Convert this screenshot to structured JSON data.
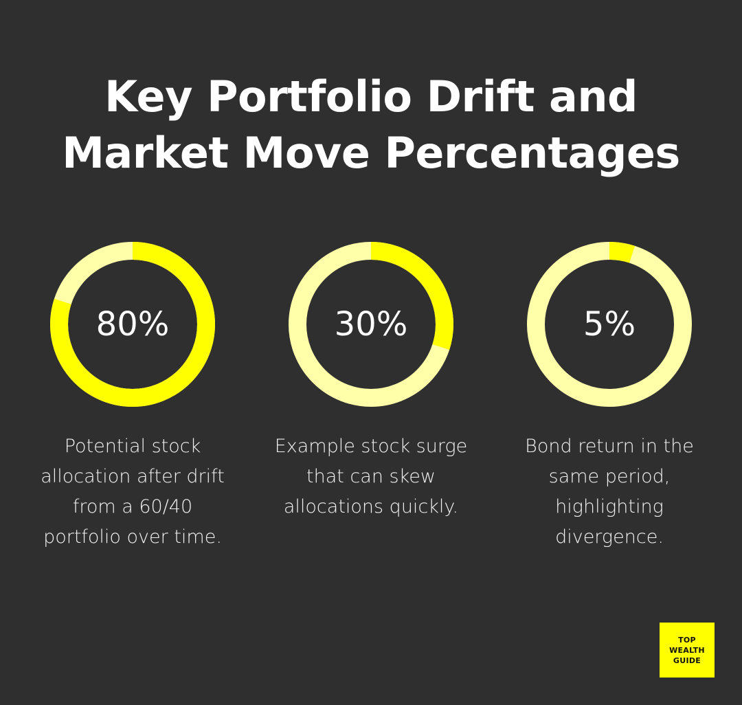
{
  "title": {
    "line1": "Key Portfolio Drift and",
    "line2": "Market Move Percentages"
  },
  "colors": {
    "background": "#2f2f2f",
    "accent": "#ffff00",
    "track": "#ffffaa",
    "text": "#ffffff"
  },
  "chart_data": {
    "type": "donut",
    "items": [
      {
        "value": 80,
        "label": "80%",
        "caption_lines": [
          "Potential stock",
          "allocation after drift",
          "from a 60/40",
          "portfolio over time."
        ]
      },
      {
        "value": 30,
        "label": "30%",
        "caption_lines": [
          "Example stock surge",
          "that can skew",
          "allocations quickly."
        ]
      },
      {
        "value": 5,
        "label": "5%",
        "caption_lines": [
          "Bond return in the",
          "same period,",
          "highlighting",
          "divergence."
        ]
      }
    ]
  },
  "brand": {
    "lines": [
      "TOP",
      "WEALTH",
      "GUIDE"
    ]
  }
}
